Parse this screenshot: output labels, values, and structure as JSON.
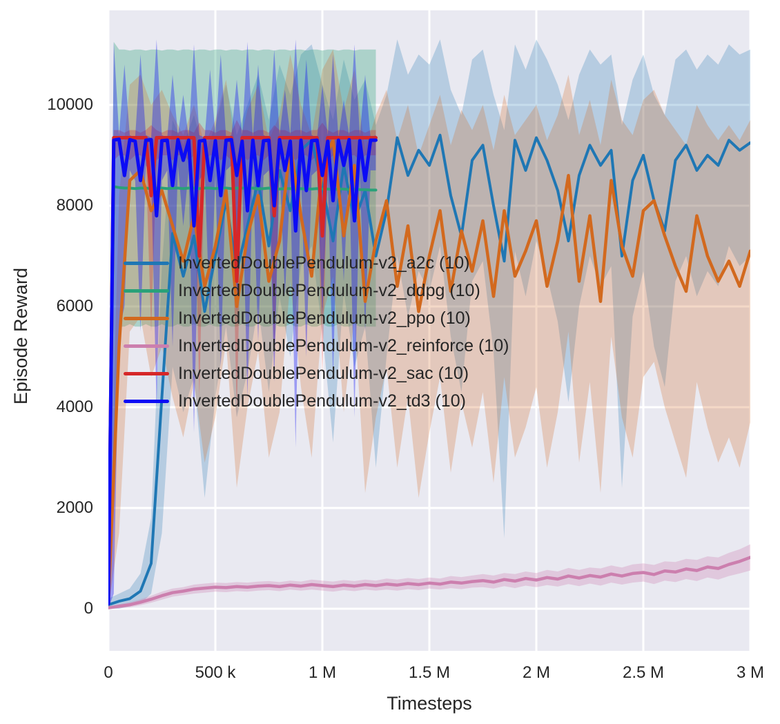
{
  "figure": {
    "background": "#ffffff",
    "plot_background": "#e9e9f1",
    "grid_color": "#ffffff",
    "text_color": "#262626"
  },
  "chart_data": {
    "type": "line",
    "title": "",
    "xlabel": "Timesteps",
    "ylabel": "Episode Reward",
    "xlim": [
      0,
      3000000
    ],
    "ylim": [
      -835,
      11877
    ],
    "grid": true,
    "legend_position": "inside center-left, no frame",
    "bands": "shaded region = spread across 10 runs (fill_between lo/hi)",
    "xticks": {
      "values": [
        0,
        500000,
        1000000,
        1500000,
        2000000,
        2500000,
        3000000
      ],
      "labels": [
        "0",
        "500 k",
        "1 M",
        "1.5 M",
        "2 M",
        "2.5 M",
        "3 M"
      ]
    },
    "yticks": {
      "values": [
        0,
        2000,
        4000,
        6000,
        8000,
        10000
      ],
      "labels": [
        "0",
        "2000",
        "4000",
        "6000",
        "8000",
        "10000"
      ]
    },
    "series": [
      {
        "name": "a2c",
        "label": "InvertedDoublePendulum-v2_a2c (10)",
        "color": "#1f77b4",
        "band_opacity": 0.25,
        "line_width": 4,
        "x": {
          "start": 0,
          "step": 50000,
          "n": 61
        },
        "mean": [
          80,
          150,
          200,
          350,
          900,
          4200,
          7450,
          6600,
          7400,
          5900,
          7000,
          8100,
          6700,
          7600,
          8500,
          7200,
          8700,
          7900,
          9100,
          9300,
          8400,
          7300,
          8800,
          7700,
          8300,
          7000,
          7900,
          9350,
          8600,
          9100,
          8800,
          9400,
          8200,
          7400,
          8900,
          9200,
          8000,
          6900,
          9300,
          8700,
          9350,
          8900,
          8300,
          7300,
          8600,
          9200,
          8800,
          9100,
          7000,
          8500,
          9000,
          8100,
          7500,
          8900,
          9200,
          8700,
          9000,
          8800,
          9300,
          9100,
          9250
        ],
        "lo": [
          0,
          0,
          50,
          100,
          300,
          1500,
          4800,
          3900,
          4600,
          2200,
          4200,
          5600,
          3800,
          4700,
          6000,
          4300,
          6200,
          5000,
          6800,
          7200,
          5500,
          3300,
          6300,
          4800,
          5600,
          2800,
          5000,
          7000,
          5800,
          6700,
          6300,
          7200,
          5400,
          4300,
          6500,
          6900,
          5100,
          1400,
          7100,
          6200,
          7300,
          6600,
          5700,
          4100,
          6000,
          7000,
          6400,
          6800,
          2400,
          5800,
          6700,
          5200,
          4400,
          6500,
          7000,
          6200,
          6700,
          6400,
          7200,
          6800,
          7000
        ],
        "hi": [
          200,
          300,
          400,
          700,
          1800,
          6800,
          9700,
          9200,
          9800,
          9000,
          9600,
          10400,
          9400,
          10000,
          10600,
          9700,
          10800,
          10200,
          11000,
          11200,
          10400,
          9700,
          10900,
          10100,
          10500,
          9600,
          10200,
          11300,
          10600,
          11000,
          10800,
          11300,
          10300,
          9800,
          10900,
          11100,
          10200,
          9500,
          11200,
          10700,
          11300,
          10900,
          10400,
          9700,
          10600,
          11100,
          10800,
          11000,
          9600,
          10500,
          11000,
          10200,
          9800,
          10900,
          11100,
          10700,
          11000,
          10800,
          11200,
          11000,
          11100
        ]
      },
      {
        "name": "ddpg",
        "label": "InvertedDoublePendulum-v2_ddpg (10)",
        "color": "#2aa179",
        "band_opacity": 0.32,
        "line_width": 4,
        "x": {
          "start": 0,
          "step": 25000,
          "n": 51
        },
        "mean": [
          150,
          8380,
          8360,
          8350,
          8350,
          8340,
          8350,
          8350,
          8340,
          8350,
          8350,
          8340,
          8350,
          8350,
          8340,
          8350,
          8350,
          8340,
          8350,
          8350,
          8340,
          8350,
          8350,
          8340,
          8350,
          8350,
          8340,
          8350,
          8330,
          8340,
          8350,
          8340,
          8330,
          8340,
          8340,
          8330,
          8340,
          8330,
          8330,
          8340,
          8330,
          8330,
          8320,
          8330,
          8330,
          8320,
          8330,
          8320,
          8320,
          8310,
          8310
        ],
        "lo": [
          0,
          2000,
          5600,
          5600,
          5650,
          5600,
          5600,
          5650,
          5600,
          5600,
          5650,
          5600,
          5600,
          5650,
          5600,
          5600,
          5650,
          5600,
          5600,
          5650,
          5600,
          5600,
          5650,
          5600,
          5600,
          5650,
          5600,
          5600,
          5650,
          5600,
          5600,
          5650,
          5600,
          5600,
          5650,
          5600,
          5600,
          5650,
          5600,
          5600,
          5650,
          5600,
          5600,
          5650,
          5600,
          5600,
          5650,
          5600,
          5600,
          5600,
          5600
        ],
        "hi": [
          400,
          11250,
          11100,
          11100,
          11080,
          11100,
          11100,
          11080,
          11100,
          11100,
          11080,
          11100,
          11100,
          11080,
          11100,
          11100,
          11080,
          11100,
          11100,
          11080,
          11100,
          11100,
          11080,
          11100,
          11100,
          11080,
          11100,
          11100,
          11080,
          11100,
          11100,
          11080,
          11100,
          11100,
          11080,
          11100,
          11100,
          11080,
          11100,
          11100,
          11080,
          11100,
          11100,
          11080,
          11100,
          11100,
          11080,
          11100,
          11100,
          11100,
          11100
        ]
      },
      {
        "name": "ppo",
        "label": "InvertedDoublePendulum-v2_ppo (10)",
        "color": "#d2691e",
        "band_opacity": 0.25,
        "line_width": 4.5,
        "x": {
          "start": 0,
          "step": 50000,
          "n": 61
        },
        "mean": [
          100,
          5200,
          8500,
          8700,
          7900,
          8300,
          7600,
          6900,
          7800,
          6400,
          7200,
          8300,
          6000,
          7400,
          8200,
          6500,
          7300,
          9200,
          7800,
          6600,
          8800,
          9300,
          7400,
          8800,
          6100,
          7300,
          8100,
          6400,
          7600,
          5900,
          7000,
          7900,
          6300,
          7500,
          6700,
          7700,
          6200,
          7900,
          6600,
          7100,
          7700,
          6400,
          7300,
          8600,
          6500,
          7800,
          6100,
          8500,
          7200,
          6600,
          7900,
          8100,
          7400,
          6800,
          6300,
          7800,
          7000,
          6500,
          6900,
          6400,
          7100
        ],
        "lo": [
          0,
          1500,
          5500,
          5800,
          4600,
          5200,
          4200,
          3400,
          4500,
          2900,
          3800,
          5300,
          2400,
          4000,
          5100,
          3000,
          3900,
          6500,
          4400,
          3000,
          5800,
          6600,
          3900,
          5800,
          2300,
          3800,
          4800,
          2800,
          4200,
          2200,
          3500,
          4600,
          2700,
          4100,
          3200,
          4300,
          2500,
          4600,
          3000,
          3600,
          4400,
          2800,
          3900,
          5500,
          2900,
          4500,
          2300,
          5400,
          3800,
          3000,
          4600,
          4900,
          4000,
          3300,
          2600,
          4500,
          3600,
          2900,
          3400,
          2800,
          3700
        ],
        "hi": [
          300,
          8200,
          10400,
          10600,
          10000,
          10300,
          9800,
          9400,
          10000,
          9200,
          9700,
          10500,
          9000,
          9900,
          10400,
          9300,
          9800,
          11000,
          10000,
          9400,
          10700,
          11100,
          9900,
          10700,
          9100,
          9800,
          10300,
          9300,
          10000,
          9000,
          9600,
          10200,
          9200,
          9900,
          9500,
          10000,
          9100,
          10200,
          9400,
          9700,
          10000,
          9300,
          9800,
          10600,
          9400,
          10100,
          9200,
          10500,
          9700,
          9400,
          10100,
          10300,
          9800,
          9500,
          9200,
          10000,
          9600,
          9300,
          9600,
          9300,
          9700
        ]
      },
      {
        "name": "reinforce",
        "label": "InvertedDoublePendulum-v2_reinforce (10)",
        "color": "#cc7fae",
        "band_opacity": 0.3,
        "line_width": 4.5,
        "x": {
          "start": 0,
          "step": 50000,
          "n": 61
        },
        "mean": [
          20,
          50,
          80,
          130,
          190,
          260,
          320,
          350,
          390,
          410,
          430,
          420,
          440,
          430,
          450,
          460,
          440,
          470,
          450,
          480,
          460,
          440,
          470,
          450,
          480,
          460,
          490,
          470,
          500,
          480,
          510,
          490,
          530,
          510,
          540,
          560,
          530,
          580,
          550,
          600,
          570,
          620,
          590,
          650,
          610,
          660,
          630,
          690,
          650,
          700,
          720,
          680,
          750,
          730,
          790,
          760,
          830,
          800,
          880,
          940,
          1020
        ],
        "lo": [
          0,
          10,
          30,
          70,
          120,
          180,
          240,
          270,
          300,
          320,
          340,
          330,
          350,
          340,
          360,
          370,
          350,
          380,
          360,
          380,
          360,
          340,
          370,
          350,
          380,
          360,
          380,
          360,
          390,
          370,
          400,
          380,
          410,
          390,
          420,
          430,
          400,
          450,
          410,
          460,
          430,
          470,
          440,
          490,
          450,
          500,
          460,
          520,
          480,
          520,
          540,
          490,
          560,
          530,
          590,
          550,
          620,
          580,
          650,
          700,
          760
        ],
        "hi": [
          40,
          90,
          130,
          190,
          260,
          340,
          400,
          430,
          480,
          500,
          520,
          510,
          530,
          520,
          540,
          550,
          530,
          560,
          540,
          580,
          560,
          540,
          570,
          550,
          580,
          560,
          600,
          580,
          610,
          590,
          620,
          600,
          650,
          630,
          660,
          690,
          660,
          710,
          690,
          740,
          710,
          770,
          740,
          810,
          770,
          820,
          800,
          860,
          820,
          880,
          900,
          870,
          940,
          930,
          990,
          970,
          1040,
          1020,
          1110,
          1180,
          1280
        ]
      },
      {
        "name": "sac",
        "label": "InvertedDoublePendulum-v2_sac (10)",
        "color": "#d62728",
        "band_opacity": 0.3,
        "line_width": 5,
        "x": {
          "start": 0,
          "step": 25000,
          "n": 51
        },
        "mean": [
          100,
          9350,
          9350,
          9350,
          9350,
          9350,
          9350,
          9350,
          8200,
          9350,
          9350,
          9350,
          9350,
          9350,
          9350,
          9350,
          9350,
          7000,
          9350,
          9350,
          9350,
          9350,
          9350,
          9350,
          6500,
          9350,
          9350,
          9350,
          9350,
          9350,
          9350,
          7800,
          9350,
          9350,
          9350,
          9350,
          9350,
          9350,
          9350,
          9350,
          7400,
          9350,
          9350,
          9350,
          9350,
          9350,
          9350,
          9350,
          9350,
          9350,
          9350
        ],
        "lo": [
          0,
          8900,
          9000,
          9000,
          8900,
          9000,
          9000,
          8900,
          5500,
          8900,
          9000,
          9000,
          8900,
          9000,
          9000,
          8900,
          9000,
          4200,
          8900,
          9000,
          9000,
          8900,
          9000,
          8900,
          3800,
          9000,
          8900,
          9000,
          9000,
          8900,
          9000,
          5000,
          8900,
          9000,
          9000,
          8900,
          9000,
          9000,
          8900,
          9000,
          4600,
          8900,
          9000,
          9000,
          8900,
          9000,
          9000,
          8900,
          9000,
          9000,
          9000
        ],
        "hi": [
          300,
          9500,
          9500,
          9450,
          9500,
          9500,
          9450,
          9500,
          9600,
          9500,
          9450,
          9500,
          9500,
          9450,
          9500,
          9500,
          9450,
          9650,
          9500,
          9500,
          9450,
          9500,
          9500,
          9450,
          9700,
          9500,
          9500,
          9450,
          9500,
          9500,
          9450,
          9600,
          9500,
          9500,
          9450,
          9500,
          9500,
          9450,
          9500,
          9500,
          9650,
          9500,
          9450,
          9500,
          9500,
          9450,
          9500,
          9500,
          9450,
          9500,
          9500
        ]
      },
      {
        "name": "td3",
        "label": "InvertedDoublePendulum-v2_td3 (10)",
        "color": "#0b0bf5",
        "band_opacity": 0.35,
        "line_width": 5,
        "x": {
          "start": 0,
          "step": 25000,
          "n": 51
        },
        "mean": [
          100,
          9300,
          9320,
          8600,
          9310,
          9280,
          8500,
          9300,
          9310,
          7800,
          9290,
          9300,
          8400,
          9310,
          8900,
          9300,
          7600,
          9280,
          9300,
          8500,
          9290,
          8200,
          9300,
          9310,
          8600,
          9280,
          7900,
          9300,
          8400,
          9290,
          9300,
          8000,
          9310,
          8700,
          9280,
          7500,
          9300,
          8300,
          9290,
          9300,
          8600,
          9280,
          8100,
          9300,
          8800,
          9310,
          7700,
          9290,
          8500,
          9300,
          9300
        ],
        "lo": [
          0,
          300,
          5500,
          6000,
          8700,
          8500,
          5500,
          8800,
          8600,
          4000,
          8500,
          8700,
          5200,
          8800,
          7600,
          8700,
          3500,
          8500,
          8700,
          5600,
          8600,
          4800,
          8700,
          8800,
          5900,
          8500,
          4200,
          8700,
          5300,
          8600,
          8700,
          4500,
          8800,
          6200,
          8500,
          3200,
          8700,
          5000,
          8600,
          8700,
          5800,
          8500,
          4600,
          8700,
          6500,
          8800,
          3800,
          8600,
          5500,
          8700,
          8700
        ],
        "hi": [
          250,
          11250,
          9400,
          10800,
          9400,
          9350,
          11000,
          9400,
          9350,
          11300,
          9400,
          9350,
          10600,
          9400,
          10200,
          9350,
          11200,
          9400,
          9350,
          10700,
          9400,
          11000,
          9350,
          9400,
          10500,
          9400,
          11250,
          9350,
          10800,
          9400,
          9350,
          11100,
          9400,
          10300,
          9400,
          11300,
          9350,
          10900,
          9400,
          9350,
          10400,
          9400,
          11000,
          9350,
          10100,
          9400,
          11200,
          9400,
          10600,
          9350,
          9400
        ]
      }
    ]
  }
}
